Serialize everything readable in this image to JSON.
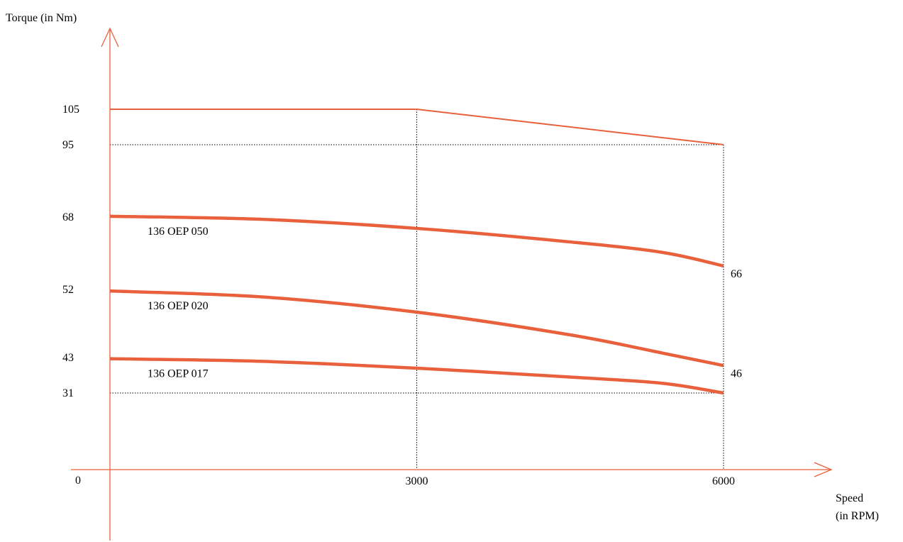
{
  "chart_data": {
    "type": "line",
    "ylabel": "Torque (in Nm)",
    "xlabel_line1": "Speed",
    "xlabel_line2": "(in RPM)",
    "origin_label": "0",
    "x_ticks": [
      "3000",
      "6000"
    ],
    "y_ticks": [
      "105",
      "95",
      "68",
      "52",
      "43",
      "31"
    ],
    "envelope": {
      "points": [
        [
          0,
          105
        ],
        [
          3000,
          105
        ],
        [
          6000,
          95
        ]
      ]
    },
    "series": [
      {
        "name": "136 OEP 050",
        "points": [
          [
            0,
            68.3
          ],
          [
            1500,
            67.5
          ],
          [
            3000,
            65.5
          ],
          [
            4500,
            62.5
          ],
          [
            5400,
            60.2
          ],
          [
            6000,
            57.2
          ]
        ]
      },
      {
        "name": "136 OEP 020",
        "points": [
          [
            0,
            51.8
          ],
          [
            1500,
            51.0
          ],
          [
            3000,
            49.0
          ],
          [
            4500,
            46.0
          ],
          [
            5400,
            43.6
          ],
          [
            6000,
            40.3
          ]
        ]
      },
      {
        "name": "136 OEP 017",
        "points": [
          [
            0,
            42.6
          ],
          [
            1500,
            41.7
          ],
          [
            3000,
            39.4
          ],
          [
            4500,
            36.4
          ],
          [
            5400,
            34.3
          ],
          [
            6000,
            31.0
          ]
        ]
      }
    ],
    "end_labels": [
      "66",
      "46"
    ],
    "reference_lines": [
      {
        "axis": "y",
        "value": 95,
        "to_x": 6000
      },
      {
        "axis": "y",
        "value": 31,
        "to_x": 6000
      },
      {
        "axis": "x",
        "value": 3000,
        "to_y": 105
      },
      {
        "axis": "x",
        "value": 6000,
        "to_y": 95
      }
    ],
    "colors": {
      "curve": "#e8603c",
      "axis": "#e8603c",
      "guide": "#000000"
    }
  }
}
